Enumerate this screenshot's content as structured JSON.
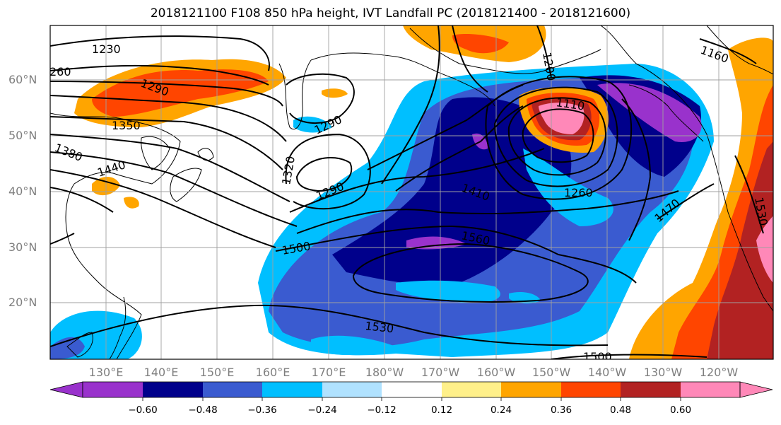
{
  "title": "2018121100 F108 850 hPa height, IVT Landfall PC (2018121400 - 2018121600)",
  "lat_labels": [
    "60°N",
    "50°N",
    "40°N",
    "30°N",
    "20°N"
  ],
  "lon_labels": [
    "130°E",
    "140°E",
    "150°E",
    "160°E",
    "170°E",
    "180°W",
    "170°W",
    "160°W",
    "150°W",
    "140°W",
    "130°W",
    "120°W"
  ],
  "colorbar": {
    "ticks": [
      "−0.60",
      "−0.48",
      "−0.36",
      "−0.24",
      "−0.12",
      "0.12",
      "0.24",
      "0.36",
      "0.48",
      "0.60"
    ],
    "colors": [
      "#9932cc",
      "#00008b",
      "#3a5bd0",
      "#00bfff",
      "#b0e2ff",
      "#ffffff",
      "#fff08a",
      "#ffa500",
      "#ff4500",
      "#b22222",
      "#ff88b8"
    ]
  },
  "contour_labels": [
    "1230",
    "260",
    "1290",
    "1350",
    "1380",
    "1440",
    "1290",
    "1320",
    "1290",
    "1500",
    "1560",
    "1530",
    "1500",
    "1110",
    "1260",
    "1470",
    "1160",
    "1200",
    "1530",
    "1410"
  ]
}
